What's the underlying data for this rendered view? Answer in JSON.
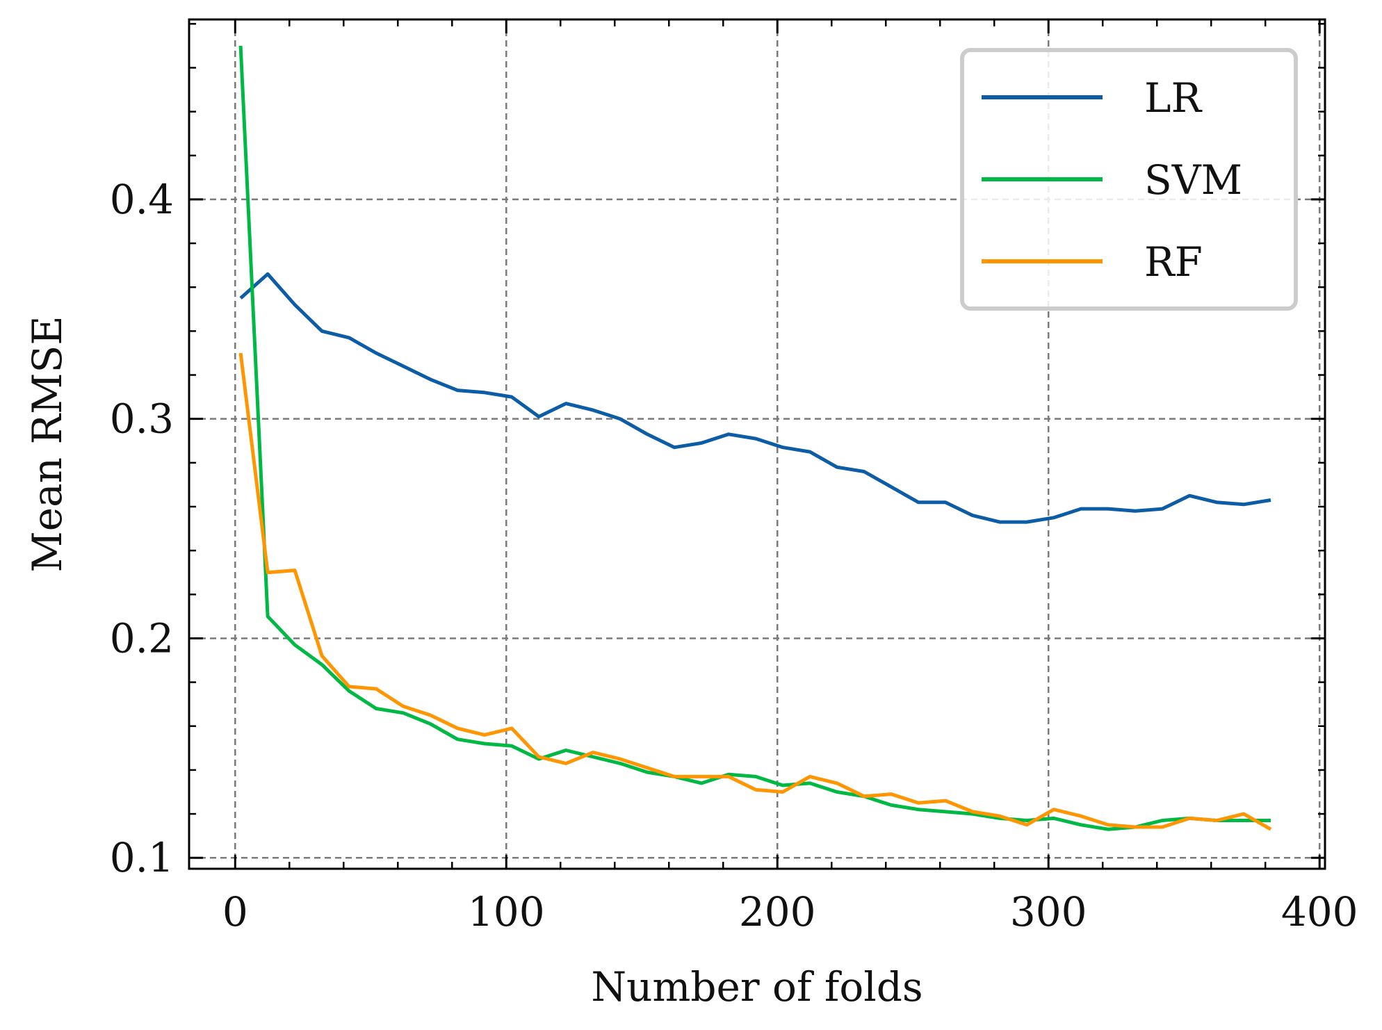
{
  "chart_data": {
    "type": "line",
    "xlabel": "Number of folds",
    "ylabel": "Mean RMSE",
    "xlim": [
      -17,
      402
    ],
    "ylim": [
      0.095,
      0.482
    ],
    "xticks": [
      0,
      100,
      200,
      300,
      400
    ],
    "yticks": [
      0.1,
      0.2,
      0.3,
      0.4
    ],
    "xtick_labels": [
      "0",
      "100",
      "200",
      "300",
      "400"
    ],
    "ytick_labels": [
      "0.1",
      "0.2",
      "0.3",
      "0.4"
    ],
    "x_minor_step": 20,
    "y_minor_step": 0.02,
    "grid": true,
    "legend_position": "top-right",
    "x": [
      2,
      12,
      22,
      32,
      42,
      52,
      62,
      72,
      82,
      92,
      102,
      112,
      122,
      132,
      142,
      152,
      162,
      172,
      182,
      192,
      202,
      212,
      222,
      232,
      242,
      252,
      262,
      272,
      282,
      292,
      302,
      312,
      322,
      332,
      342,
      352,
      362,
      372,
      382
    ],
    "series": [
      {
        "name": "LR",
        "color": "#0C5DA5",
        "values": [
          0.355,
          0.366,
          0.352,
          0.34,
          0.337,
          0.33,
          0.324,
          0.318,
          0.313,
          0.312,
          0.31,
          0.301,
          0.307,
          0.304,
          0.3,
          0.293,
          0.287,
          0.289,
          0.293,
          0.291,
          0.287,
          0.285,
          0.278,
          0.276,
          0.269,
          0.262,
          0.262,
          0.256,
          0.253,
          0.253,
          0.255,
          0.259,
          0.259,
          0.258,
          0.259,
          0.265,
          0.262,
          0.261,
          0.263
        ]
      },
      {
        "name": "SVM",
        "color": "#00B945",
        "values": [
          0.47,
          0.21,
          0.197,
          0.188,
          0.176,
          0.168,
          0.166,
          0.161,
          0.154,
          0.152,
          0.151,
          0.145,
          0.149,
          0.146,
          0.143,
          0.139,
          0.137,
          0.134,
          0.138,
          0.137,
          0.133,
          0.134,
          0.13,
          0.128,
          0.124,
          0.122,
          0.121,
          0.12,
          0.118,
          0.117,
          0.118,
          0.115,
          0.113,
          0.114,
          0.117,
          0.118,
          0.117,
          0.117,
          0.117
        ]
      },
      {
        "name": "RF",
        "color": "#FF9500",
        "values": [
          0.33,
          0.23,
          0.231,
          0.192,
          0.178,
          0.177,
          0.169,
          0.165,
          0.159,
          0.156,
          0.159,
          0.146,
          0.143,
          0.148,
          0.145,
          0.141,
          0.137,
          0.137,
          0.137,
          0.131,
          0.13,
          0.137,
          0.134,
          0.128,
          0.129,
          0.125,
          0.126,
          0.121,
          0.119,
          0.115,
          0.122,
          0.119,
          0.115,
          0.114,
          0.114,
          0.118,
          0.117,
          0.12,
          0.113
        ]
      }
    ]
  }
}
